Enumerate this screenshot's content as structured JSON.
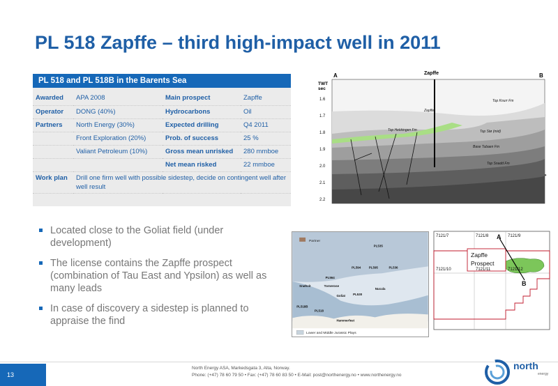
{
  "title": "PL 518 Zapffe – third high-impact well in 2011",
  "table": {
    "header": "PL 518 and PL 518B in the Barents Sea",
    "rows": [
      {
        "k1": "Awarded",
        "v1": "APA 2008",
        "k2": "Main prospect",
        "v2": "Zapffe"
      },
      {
        "k1": "Operator",
        "v1": "DONG (40%)",
        "k2": "Hydrocarbons",
        "v2": "Oil"
      },
      {
        "k1": "Partners",
        "v1": "North Energy (30%)",
        "k2": "Expected drilling",
        "v2": "Q4 2011"
      },
      {
        "k1": "",
        "v1": "Front Exploration (20%)",
        "k2": "Prob. of success",
        "v2": "25 %"
      },
      {
        "k1": "",
        "v1": "Valiant Petroleum (10%)",
        "k2": "Gross mean unrisked",
        "v2": "280 mmboe"
      },
      {
        "k1": "",
        "v1": "",
        "k2": "Net mean risked",
        "v2": "22 mmboe"
      }
    ],
    "workplan_key": "Work plan",
    "workplan_value": "Drill one firm well with possible sidestep, decide on contingent well after  well result"
  },
  "seismic": {
    "label_a": "A",
    "label_b": "B",
    "label_well": "Zapffe",
    "twt": "TWT",
    "sec": "sec",
    "ticks": [
      "1.6",
      "1.7",
      "1.8",
      "1.9",
      "2.0",
      "2.1",
      "2.2"
    ],
    "horizons": [
      "Top Knurr Fm",
      "Zapffe",
      "Top Hekkingen Fm",
      "Top Stø (mid)",
      "Base Tubaen Fm",
      "Top Snadd Fm"
    ]
  },
  "bullets": [
    "Located close to the Goliat field (under development)",
    "The license contains the Zapffe prospect (combination of Tau East and Ypsilon) as well as many leads",
    "In case of discovery a sidestep is planned to appraise the find"
  ],
  "map1": {
    "legend_partner": "Partner",
    "legend_plays": "Lower and Middle Jurassic Plays",
    "labels": [
      "PL535",
      "PL594",
      "PL595",
      "PL536",
      "PL564",
      "PL530",
      "PL518B",
      "PL518",
      "Snøhvit",
      "Tornerose",
      "Goliat",
      "Nucula",
      "Hammerfest"
    ]
  },
  "map2": {
    "blocks": [
      "7121/7",
      "7121/8",
      "7121/9",
      "7121/10",
      "7121/11",
      "7121/12"
    ],
    "prospect_line1": "Zapffe",
    "prospect_line2": "Prospect",
    "label_a": "A",
    "label_b": "B"
  },
  "footer": {
    "page": "13",
    "line1": "North Energy ASA, Markedsgata 3, Alta, Norway.",
    "line2": "Phone: (+47) 78 60 79 50  • Fax: (+47) 78 60 83 50  • E-Mail: post@northenergy.no  •  www.northenergy.no",
    "logo": "north",
    "logo_sub": "energy"
  },
  "colors": {
    "title_blue": "#1f5fa6",
    "header_blue": "#1668b8",
    "table_bg": "#ebebeb",
    "prospect_red": "#c0182b",
    "prospect_green": "#7cc65a"
  }
}
